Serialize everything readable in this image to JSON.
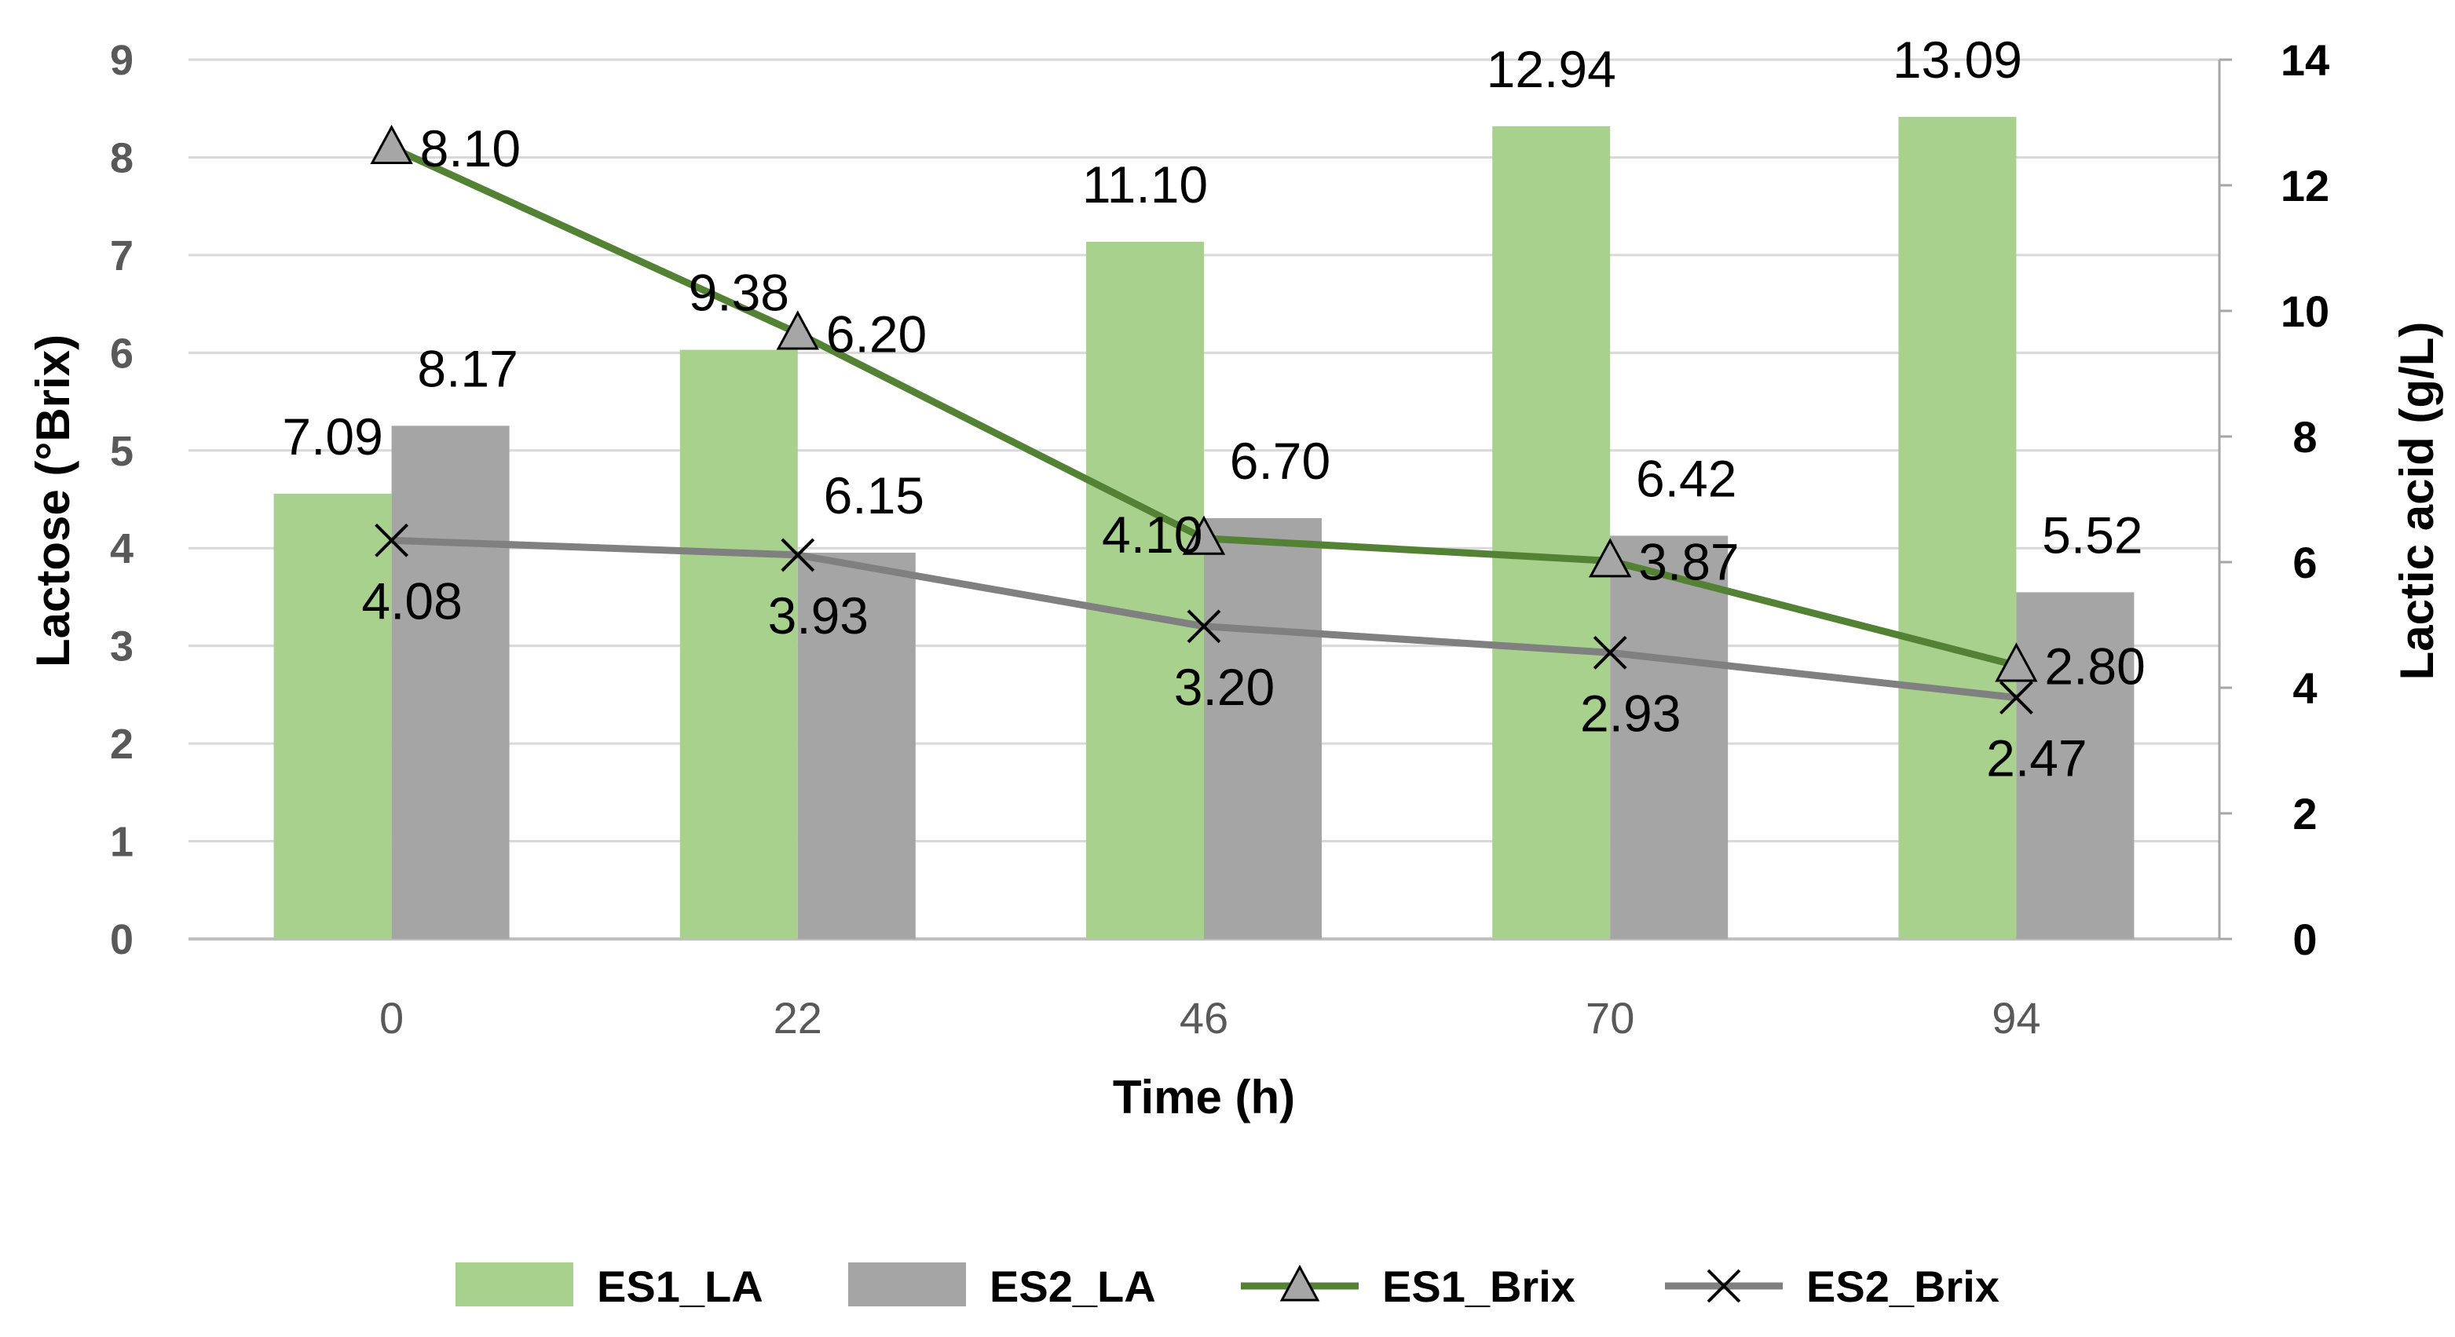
{
  "chart_data": {
    "type": "bar+line",
    "title": "",
    "xlabel": "Time (h)",
    "ylabel_left": "Lactose (°Brix)",
    "ylabel_right": "Lactic acid (g/L)",
    "categories": [
      "0",
      "22",
      "46",
      "70",
      "94"
    ],
    "ylim_left": [
      0,
      9
    ],
    "yticks_left": [
      "0",
      "1",
      "2",
      "3",
      "4",
      "5",
      "6",
      "7",
      "8",
      "9"
    ],
    "ylim_right": [
      0,
      14
    ],
    "yticks_right": [
      "0",
      "2",
      "4",
      "6",
      "8",
      "10",
      "12",
      "14"
    ],
    "grid": true,
    "legend_position": "bottom",
    "series": [
      {
        "name": "ES1_LA",
        "kind": "bar",
        "axis": "right",
        "color": "#a9d18e",
        "values": [
          7.09,
          9.38,
          11.1,
          12.94,
          13.09
        ],
        "labels": [
          "7.09",
          "9.38",
          "11.10",
          "12.94",
          "13.09"
        ]
      },
      {
        "name": "ES2_LA",
        "kind": "bar",
        "axis": "right",
        "color": "#a5a5a5",
        "values": [
          8.17,
          6.15,
          6.7,
          6.42,
          5.52
        ],
        "labels": [
          "8.17",
          "6.15",
          "6.70",
          "6.42",
          "5.52"
        ]
      },
      {
        "name": "ES1_Brix",
        "kind": "line",
        "axis": "left",
        "marker": "triangle",
        "color": "#548235",
        "values": [
          8.1,
          6.2,
          4.1,
          3.87,
          2.8
        ],
        "labels": [
          "8.10",
          "6.20",
          "4.10",
          "3.87",
          "2.80"
        ]
      },
      {
        "name": "ES2_Brix",
        "kind": "line",
        "axis": "left",
        "marker": "x",
        "color": "#808080",
        "values": [
          4.08,
          3.93,
          3.2,
          2.93,
          2.47
        ],
        "labels": [
          "4.08",
          "3.93",
          "3.20",
          "2.93",
          "2.47"
        ]
      }
    ]
  }
}
